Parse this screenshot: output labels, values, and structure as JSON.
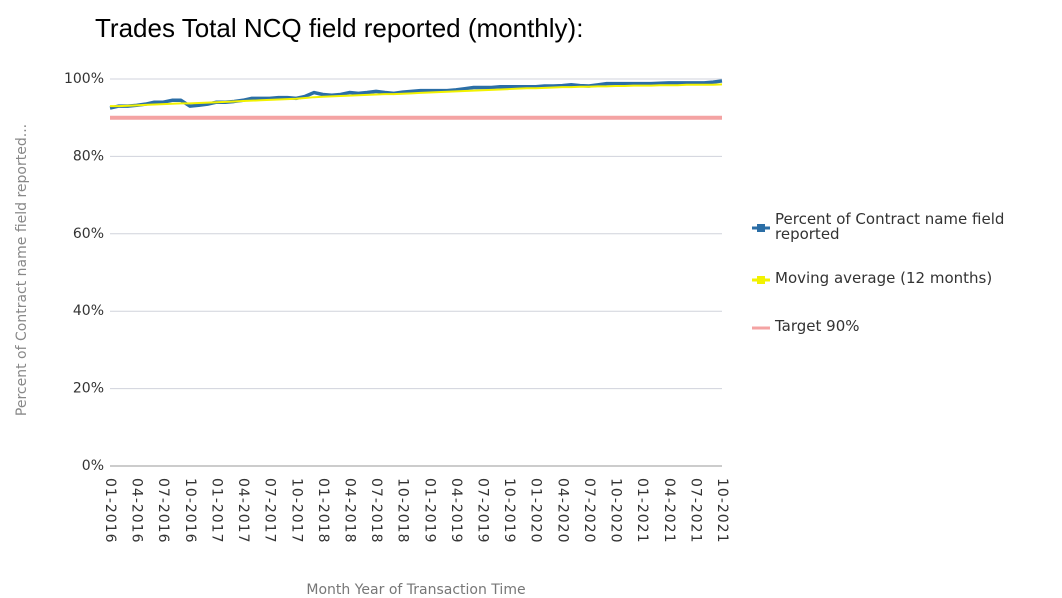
{
  "chart_data": {
    "type": "line",
    "title": "Trades Total NCQ field reported (monthly):",
    "ylabel": "Percent of Contract name field reported...",
    "xlabel": "Month Year of Transaction Time",
    "categories": [
      "01-2016",
      null,
      null,
      "04-2016",
      null,
      null,
      "07-2016",
      null,
      null,
      "10-2016",
      null,
      null,
      "01-2017",
      null,
      null,
      "04-2017",
      null,
      null,
      "07-2017",
      null,
      null,
      "10-2017",
      null,
      null,
      "01-2018",
      null,
      null,
      "04-2018",
      null,
      null,
      "07-2018",
      null,
      null,
      "10-2018",
      null,
      null,
      "01-2019",
      null,
      null,
      "04-2019",
      null,
      null,
      "07-2019",
      null,
      null,
      "10-2019",
      null,
      null,
      "01-2020",
      null,
      null,
      "04-2020",
      null,
      null,
      "07-2020",
      null,
      null,
      "10-2020",
      null,
      null,
      "01-2021",
      null,
      null,
      "04-2021",
      null,
      null,
      "07-2021",
      null,
      null,
      "10-2021"
    ],
    "series": [
      {
        "name": "Percent of Contract name field reported",
        "color": "#2b6ea6",
        "width": 3.5,
        "values": [
          92.5,
          93,
          93,
          93.2,
          93.5,
          94,
          94,
          94.5,
          94.5,
          93,
          93.2,
          93.5,
          94,
          94,
          94.2,
          94.5,
          95,
          95,
          95,
          95.2,
          95.2,
          95,
          95.5,
          96.5,
          96,
          95.8,
          96,
          96.5,
          96.3,
          96.5,
          96.8,
          96.5,
          96.3,
          96.6,
          96.8,
          97,
          97,
          97,
          97,
          97.2,
          97.5,
          97.8,
          97.8,
          97.8,
          98,
          98,
          98,
          98,
          98,
          98.2,
          98.2,
          98.3,
          98.5,
          98.3,
          98.2,
          98.5,
          98.8,
          98.8,
          98.8,
          98.8,
          98.8,
          98.8,
          98.9,
          99,
          99,
          99,
          99,
          99,
          99.2,
          99.5
        ]
      },
      {
        "name": "Moving average (12 months)",
        "color": "#f2f200",
        "width": 2,
        "values": [
          93,
          93,
          93.1,
          93.2,
          93.3,
          93.4,
          93.5,
          93.6,
          93.7,
          93.7,
          93.8,
          93.9,
          94,
          94.1,
          94.2,
          94.3,
          94.4,
          94.5,
          94.6,
          94.7,
          94.8,
          94.9,
          95.1,
          95.3,
          95.4,
          95.5,
          95.6,
          95.7,
          95.8,
          95.9,
          96,
          96.1,
          96.1,
          96.2,
          96.3,
          96.4,
          96.5,
          96.6,
          96.7,
          96.8,
          96.9,
          97,
          97.1,
          97.2,
          97.3,
          97.4,
          97.5,
          97.6,
          97.6,
          97.7,
          97.8,
          97.9,
          97.9,
          98,
          98,
          98.1,
          98.1,
          98.2,
          98.2,
          98.3,
          98.3,
          98.3,
          98.4,
          98.4,
          98.4,
          98.5,
          98.5,
          98.5,
          98.5,
          98.6
        ]
      },
      {
        "name": "Target 90%",
        "color": "#f4a3a3",
        "width": 4,
        "values": [
          90,
          90,
          90,
          90,
          90,
          90,
          90,
          90,
          90,
          90,
          90,
          90,
          90,
          90,
          90,
          90,
          90,
          90,
          90,
          90,
          90,
          90,
          90,
          90,
          90,
          90,
          90,
          90,
          90,
          90,
          90,
          90,
          90,
          90,
          90,
          90,
          90,
          90,
          90,
          90,
          90,
          90,
          90,
          90,
          90,
          90,
          90,
          90,
          90,
          90,
          90,
          90,
          90,
          90,
          90,
          90,
          90,
          90,
          90,
          90,
          90,
          90,
          90,
          90,
          90,
          90,
          90,
          90,
          90,
          90
        ]
      }
    ],
    "ylim": [
      0,
      100
    ],
    "yticks": [
      {
        "value": 0,
        "label": "0%"
      },
      {
        "value": 20,
        "label": "20%"
      },
      {
        "value": 40,
        "label": "40%"
      },
      {
        "value": 60,
        "label": "60%"
      },
      {
        "value": 80,
        "label": "80%"
      },
      {
        "value": 100,
        "label": "100%"
      }
    ],
    "grid": true,
    "legend": "right"
  }
}
